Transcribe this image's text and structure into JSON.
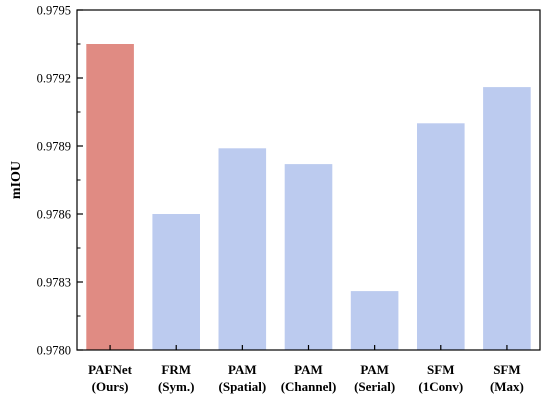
{
  "chart_data": {
    "type": "bar",
    "title": "",
    "xlabel": "",
    "ylabel": "mIOU",
    "ylim": [
      0.978,
      0.9795
    ],
    "yticks": [
      "0.9780",
      "0.9783",
      "0.9786",
      "0.9789",
      "0.9792",
      "0.9795"
    ],
    "categories": [
      [
        "PAFNet",
        "(Ours)"
      ],
      [
        "FRM",
        "(Sym.)"
      ],
      [
        "PAM",
        "(Spatial)"
      ],
      [
        "PAM",
        "(Channel)"
      ],
      [
        "PAM",
        "(Serial)"
      ],
      [
        "SFM",
        "(1Conv)"
      ],
      [
        "SFM",
        "(Max)"
      ]
    ],
    "values": [
      0.97935,
      0.9786,
      0.97889,
      0.97882,
      0.97826,
      0.979,
      0.97916
    ],
    "colors": [
      "#e08b83",
      "#bccbef",
      "#bccbef",
      "#bccbef",
      "#bccbef",
      "#bccbef",
      "#bccbef"
    ],
    "grid": false,
    "legend": "none"
  }
}
